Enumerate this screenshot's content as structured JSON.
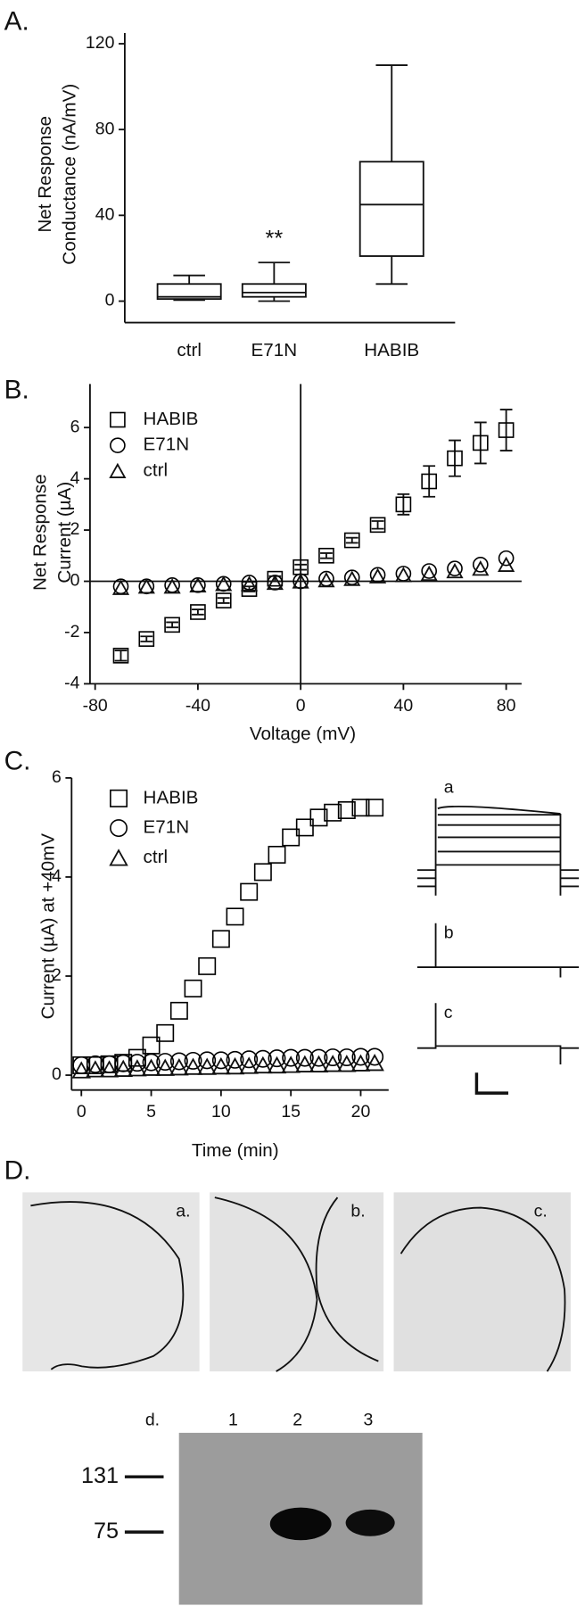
{
  "panel_labels": [
    "A.",
    "B.",
    "C.",
    "D."
  ],
  "chart_data": [
    {
      "type": "box",
      "ylabel": [
        "Net Response",
        "Conductance (nA/mV)"
      ],
      "categories": [
        "ctrl",
        "E71N",
        "HABIB"
      ],
      "min": [
        0.5,
        0,
        8
      ],
      "q1": [
        1,
        2,
        21
      ],
      "median": [
        2,
        4,
        45
      ],
      "q3": [
        8,
        8,
        65
      ],
      "max": [
        12,
        18,
        110
      ],
      "annotation": "**",
      "ylim": [
        -10,
        125
      ],
      "yticks": [
        0,
        40,
        80,
        120
      ]
    },
    {
      "type": "scatter",
      "xlabel": "Voltage (mV)",
      "ylabel": [
        "Net Response",
        "Current (µA)"
      ],
      "x": [
        -70,
        -60,
        -50,
        -40,
        -30,
        -20,
        -10,
        0,
        10,
        20,
        30,
        40,
        50,
        60,
        70,
        80
      ],
      "series": [
        {
          "name": "HABIB",
          "marker": "square",
          "color": "#000000",
          "values": [
            -2.9,
            -2.25,
            -1.7,
            -1.2,
            -0.75,
            -0.3,
            0.1,
            0.55,
            1.0,
            1.6,
            2.2,
            3.0,
            3.9,
            4.8,
            5.4,
            5.9
          ],
          "errors": [
            0.2,
            0.1,
            0.1,
            0.1,
            0.1,
            0.1,
            0.1,
            0.1,
            0.1,
            0.1,
            0.15,
            0.4,
            0.6,
            0.7,
            0.8,
            0.8
          ]
        },
        {
          "name": "E71N",
          "marker": "circle",
          "color": "#000000",
          "values": [
            -0.2,
            -0.2,
            -0.15,
            -0.15,
            -0.1,
            -0.05,
            -0.05,
            0,
            0.1,
            0.15,
            0.25,
            0.3,
            0.4,
            0.5,
            0.65,
            0.9
          ]
        },
        {
          "name": "ctrl",
          "marker": "triangle",
          "color": "#000000",
          "values": [
            -0.25,
            -0.2,
            -0.2,
            -0.15,
            -0.1,
            -0.1,
            -0.05,
            0,
            0.05,
            0.1,
            0.2,
            0.25,
            0.3,
            0.4,
            0.5,
            0.65
          ]
        }
      ],
      "xlim": [
        -82,
        86
      ],
      "ylim": [
        -4,
        7.7
      ],
      "xticks": [
        -80,
        -40,
        0,
        40,
        80
      ],
      "yticks": [
        -4,
        -2,
        0,
        2,
        4,
        6
      ]
    },
    {
      "type": "scatter",
      "xlabel": "Time (min)",
      "ylabel": [
        "Current (µA) at +40mV"
      ],
      "x": [
        0,
        1,
        2,
        3,
        4,
        5,
        6,
        7,
        8,
        9,
        10,
        11,
        12,
        13,
        14,
        15,
        16,
        17,
        18,
        19,
        20,
        21
      ],
      "series": [
        {
          "name": "HABIB",
          "marker": "square",
          "color": "#000000",
          "values": [
            0.2,
            0.2,
            0.22,
            0.25,
            0.35,
            0.6,
            0.85,
            1.3,
            1.75,
            2.2,
            2.75,
            3.2,
            3.7,
            4.1,
            4.45,
            4.8,
            5.0,
            5.2,
            5.3,
            5.35,
            5.4,
            5.4
          ]
        },
        {
          "name": "E71N",
          "marker": "circle",
          "color": "#000000",
          "values": [
            0.2,
            0.22,
            0.22,
            0.24,
            0.25,
            0.26,
            0.27,
            0.28,
            0.29,
            0.3,
            0.3,
            0.31,
            0.32,
            0.33,
            0.34,
            0.35,
            0.35,
            0.35,
            0.36,
            0.36,
            0.37,
            0.37
          ]
        },
        {
          "name": "ctrl",
          "marker": "triangle",
          "color": "#000000",
          "values": [
            0.1,
            0.12,
            0.12,
            0.13,
            0.14,
            0.15,
            0.15,
            0.16,
            0.17,
            0.17,
            0.18,
            0.18,
            0.19,
            0.2,
            0.2,
            0.21,
            0.22,
            0.22,
            0.23,
            0.23,
            0.24,
            0.25
          ]
        }
      ],
      "xlim": [
        -0.7,
        22
      ],
      "ylim": [
        -0.3,
        6
      ],
      "xticks": [
        0,
        5,
        10,
        15,
        20
      ],
      "yticks": [
        0,
        2,
        4,
        6
      ]
    }
  ],
  "panel_c_traces": {
    "labels": [
      "a",
      "b",
      "c"
    ]
  },
  "panel_d": {
    "image_labels": [
      "a.",
      "b.",
      "c."
    ],
    "blot": {
      "label": "d.",
      "lanes": [
        "1",
        "2",
        "3"
      ],
      "markers": [
        "131",
        "75"
      ]
    }
  }
}
